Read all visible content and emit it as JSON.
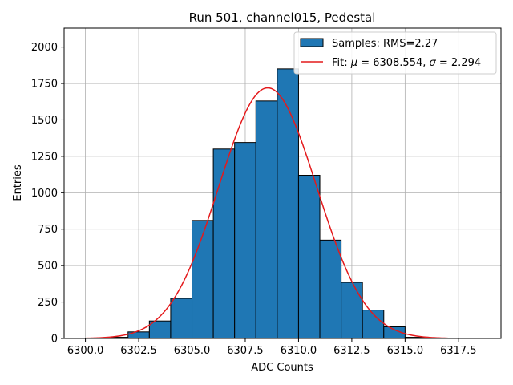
{
  "chart_data": {
    "type": "bar",
    "title": "Run 501, channel015, Pedestal",
    "xlabel": "ADC Counts",
    "ylabel": "Entries",
    "xlim": [
      6299.0,
      6319.5
    ],
    "ylim": [
      0,
      2130
    ],
    "xticks": [
      6300.0,
      6302.5,
      6305.0,
      6307.5,
      6310.0,
      6312.5,
      6315.0,
      6317.5
    ],
    "xtick_labels": [
      "6300.0",
      "6302.5",
      "6305.0",
      "6307.5",
      "6310.0",
      "6312.5",
      "6315.0",
      "6317.5"
    ],
    "yticks": [
      0,
      250,
      500,
      750,
      1000,
      1250,
      1500,
      1750,
      2000
    ],
    "ytick_labels": [
      "0",
      "250",
      "500",
      "750",
      "1000",
      "1250",
      "1500",
      "1750",
      "2000"
    ],
    "grid": true,
    "legend_position": "top-right",
    "bar_color": "#1f77b4",
    "fit_color": "#e41a1c",
    "bins": [
      {
        "left": 6301,
        "width": 1,
        "value": 8
      },
      {
        "left": 6302,
        "width": 1,
        "value": 45
      },
      {
        "left": 6303,
        "width": 1,
        "value": 120
      },
      {
        "left": 6304,
        "width": 1,
        "value": 275
      },
      {
        "left": 6305,
        "width": 1,
        "value": 810
      },
      {
        "left": 6306,
        "width": 1,
        "value": 1300
      },
      {
        "left": 6307,
        "width": 1,
        "value": 1345
      },
      {
        "left": 6308,
        "width": 1,
        "value": 1630
      },
      {
        "left": 6309,
        "width": 1,
        "value": 1850
      },
      {
        "left": 6310,
        "width": 1,
        "value": 1120
      },
      {
        "left": 6311,
        "width": 1,
        "value": 675
      },
      {
        "left": 6312,
        "width": 1,
        "value": 385
      },
      {
        "left": 6313,
        "width": 1,
        "value": 195
      },
      {
        "left": 6314,
        "width": 1,
        "value": 80
      },
      {
        "left": 6315,
        "width": 1,
        "value": 8
      }
    ],
    "fit": {
      "mu": 6308.554,
      "sigma": 2.294,
      "amplitude": 1720,
      "x_range": [
        6300,
        6317
      ]
    },
    "legend": [
      {
        "kind": "patch",
        "label": "Samples: RMS=2.27"
      },
      {
        "kind": "line",
        "label_prefix": "Fit: ",
        "mu_symbol": "μ",
        "mu_text": " = 6308.554, ",
        "sigma_symbol": "σ",
        "sigma_text": " = 2.294"
      }
    ]
  }
}
